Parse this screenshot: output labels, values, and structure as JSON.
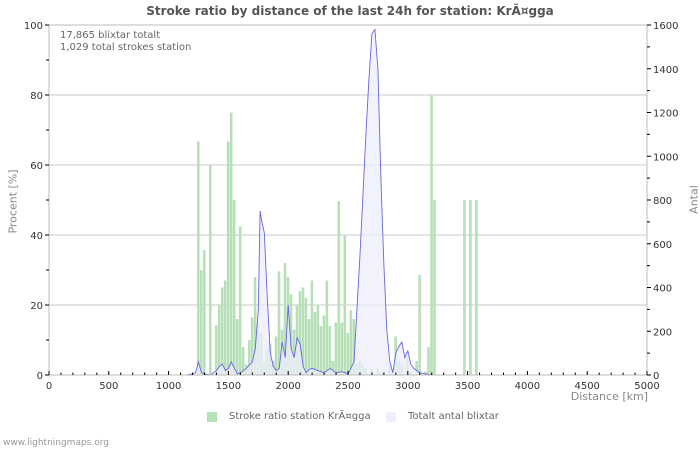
{
  "title": "Stroke ratio by distance of the last 24h for station: KrÃ¤gga",
  "info": {
    "line1": "17,865 blixtar totalt",
    "line2": "1,029 total strokes station"
  },
  "footer": "www.lightningmaps.org",
  "legend": [
    {
      "label": "Stroke ratio station KrÃ¤gga",
      "color": "#b8e0b8"
    },
    {
      "label": "Totalt antal blixtar",
      "color": "#eeeefc"
    }
  ],
  "colors": {
    "bar": "#b8e0b8",
    "line": "#6666dd",
    "area": "#eeeefc",
    "grid": "#c8c8c8",
    "axis": "#bbbbbb",
    "text": "#555555"
  },
  "chart_data": {
    "type": "bar",
    "title": "Stroke ratio by distance of the last 24h for station: KrÃ¤gga",
    "xlabel": "Distance   [km]",
    "ylabel": "Procent   [%]",
    "y2label": "Antal",
    "xlim": [
      0,
      5000
    ],
    "ylim": [
      0,
      100
    ],
    "y2lim": [
      0,
      1600
    ],
    "xticks": [
      "0",
      "500",
      "1000",
      "1500",
      "2000",
      "2500",
      "3000",
      "3500",
      "4000",
      "4500",
      "5000"
    ],
    "yticks": [
      "0",
      "20",
      "40",
      "60",
      "80",
      "100"
    ],
    "y2ticks": [
      "0",
      "200",
      "400",
      "600",
      "800",
      "1000",
      "1200",
      "1400",
      "1600"
    ],
    "grid": true,
    "legend_position": "bottom",
    "series": [
      {
        "name": "Stroke ratio station KrÃ¤gga",
        "type": "bar",
        "axis": "left",
        "x": [
          1250,
          1275,
          1300,
          1350,
          1400,
          1425,
          1450,
          1475,
          1500,
          1525,
          1550,
          1575,
          1600,
          1625,
          1650,
          1675,
          1700,
          1725,
          1750,
          1775,
          1800,
          1825,
          1850,
          1875,
          1900,
          1925,
          1950,
          1975,
          2000,
          2025,
          2050,
          2075,
          2100,
          2125,
          2150,
          2175,
          2200,
          2225,
          2250,
          2275,
          2300,
          2325,
          2350,
          2375,
          2400,
          2425,
          2450,
          2475,
          2500,
          2525,
          2550,
          2575,
          2600,
          2625,
          2650,
          2700,
          2750,
          2800,
          2850,
          2900,
          2925,
          2950,
          3000,
          3025,
          3075,
          3100,
          3150,
          3175,
          3200,
          3225,
          3475,
          3525,
          3575
        ],
        "values": [
          66.7,
          30,
          35.7,
          60,
          14.3,
          20,
          25,
          27,
          66.7,
          75,
          50,
          16,
          42.5,
          8,
          3,
          10,
          16.5,
          28,
          14.5,
          12,
          3.5,
          8,
          9,
          4,
          11,
          29.6,
          13,
          32,
          28,
          23,
          13,
          20,
          24,
          25,
          22,
          16,
          27,
          18,
          20,
          14,
          17,
          27,
          14,
          4,
          15,
          49.7,
          15,
          40,
          12,
          18.5,
          16,
          3,
          4,
          3,
          2,
          1.5,
          2,
          1,
          2.5,
          11,
          4,
          3,
          5,
          1,
          4,
          28.6,
          1,
          8,
          80,
          50,
          50,
          50,
          50
        ]
      },
      {
        "name": "Totalt antal blixtar",
        "type": "area",
        "axis": "right",
        "x": [
          1150,
          1200,
          1225,
          1250,
          1275,
          1300,
          1350,
          1400,
          1425,
          1450,
          1475,
          1500,
          1525,
          1550,
          1575,
          1600,
          1650,
          1700,
          1725,
          1750,
          1765,
          1780,
          1800,
          1825,
          1850,
          1875,
          1900,
          1925,
          1950,
          1975,
          2000,
          2025,
          2050,
          2075,
          2100,
          2125,
          2150,
          2175,
          2200,
          2250,
          2300,
          2350,
          2400,
          2450,
          2500,
          2550,
          2600,
          2625,
          2650,
          2675,
          2700,
          2725,
          2750,
          2775,
          2800,
          2825,
          2850,
          2875,
          2900,
          2925,
          2950,
          2975,
          3000,
          3025,
          3050,
          3100,
          3150,
          3200,
          3250,
          3300
        ],
        "values": [
          0,
          5,
          10,
          60,
          10,
          5,
          0,
          20,
          40,
          50,
          20,
          30,
          60,
          30,
          5,
          10,
          30,
          60,
          120,
          300,
          750,
          700,
          650,
          350,
          100,
          40,
          20,
          30,
          150,
          80,
          320,
          120,
          80,
          170,
          140,
          40,
          10,
          25,
          30,
          20,
          10,
          30,
          10,
          15,
          5,
          60,
          550,
          820,
          1100,
          1350,
          1560,
          1580,
          1400,
          900,
          500,
          200,
          60,
          10,
          100,
          130,
          150,
          80,
          110,
          50,
          30,
          10,
          5,
          0,
          0,
          0
        ]
      }
    ]
  }
}
